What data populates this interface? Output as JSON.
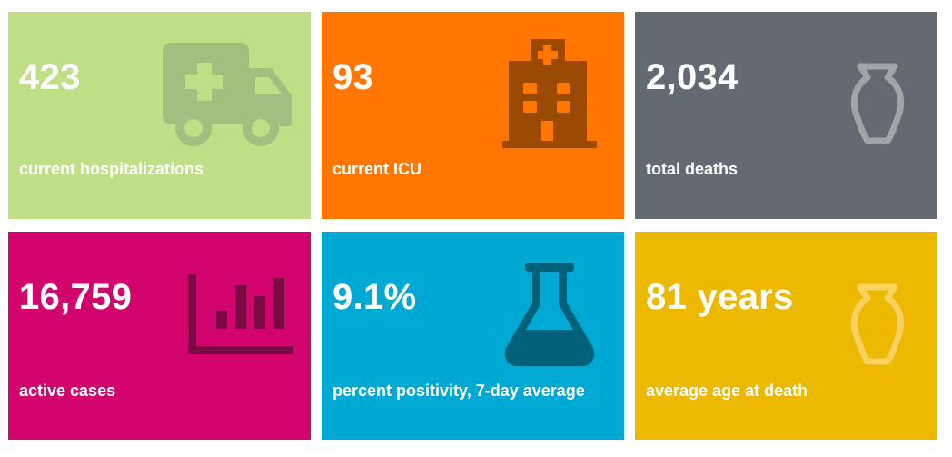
{
  "tiles": [
    {
      "value": "423",
      "label": "current hospitalizations",
      "icon": "ambulance-icon",
      "bg": "#bfdf86",
      "icon_color": "#a3bf80"
    },
    {
      "value": "93",
      "label": "current ICU",
      "icon": "hospital-building-icon",
      "bg": "#ff7700",
      "icon_color": "#9b4a04"
    },
    {
      "value": "2,034",
      "label": "total deaths",
      "icon": "urn-icon",
      "bg": "#626a73",
      "icon_color": "#a0a5aa"
    },
    {
      "value": "16,759",
      "label": "active cases",
      "icon": "bar-chart-icon",
      "bg": "#d1056d",
      "icon_color": "#7a0a42"
    },
    {
      "value": "9.1%",
      "label": "percent positivity, 7-day average",
      "icon": "flask-icon",
      "bg": "#00a8d4",
      "icon_color": "#006178"
    },
    {
      "value": "81 years",
      "label": "average age at death",
      "icon": "urn-icon",
      "bg": "#ecb800",
      "icon_color": "#f7d25e"
    }
  ]
}
